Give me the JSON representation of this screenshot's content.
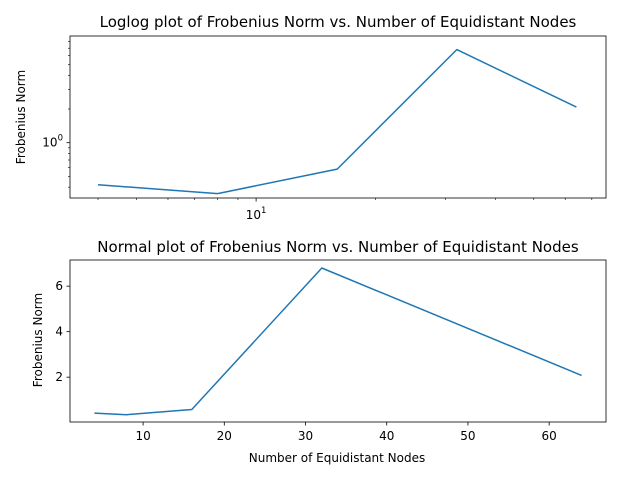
{
  "chart_data": [
    {
      "type": "line",
      "title": "Loglog plot of Frobenius Norm vs. Number of Equidistant Nodes",
      "xlabel": "",
      "ylabel": "Frobenius Norm",
      "xscale": "log",
      "yscale": "log",
      "xlim": [
        3.4,
        76
      ],
      "ylim": [
        0.32,
        9.0
      ],
      "xtick_labels": [
        {
          "value": 10,
          "base": "10",
          "exp": "1"
        }
      ],
      "ytick_labels": [
        {
          "value": 1,
          "base": "10",
          "exp": "0"
        }
      ],
      "grid": false,
      "series": [
        {
          "x": [
            4,
            8,
            16,
            32,
            64
          ],
          "y": [
            0.42,
            0.35,
            0.58,
            6.8,
            2.08
          ],
          "color": "#1f77b4"
        }
      ]
    },
    {
      "type": "line",
      "title": "Normal plot of Frobenius Norm vs. Number of Equidistant Nodes",
      "xlabel": "Number of Equidistant Nodes",
      "ylabel": "Frobenius Norm",
      "xscale": "linear",
      "yscale": "linear",
      "xlim": [
        1.0,
        67.0
      ],
      "ylim": [
        0.03,
        7.15
      ],
      "xticks": [
        10,
        20,
        30,
        40,
        50,
        60
      ],
      "yticks": [
        2,
        4,
        6
      ],
      "grid": false,
      "series": [
        {
          "x": [
            4,
            8,
            16,
            32,
            64
          ],
          "y": [
            0.42,
            0.35,
            0.58,
            6.8,
            2.08
          ],
          "color": "#1f77b4"
        }
      ]
    }
  ]
}
